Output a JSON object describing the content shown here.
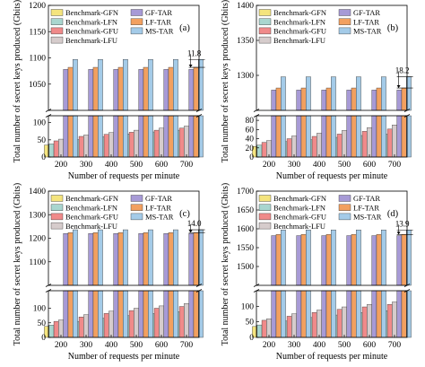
{
  "colors": {
    "Benchmark-GFN": "#f4e47e",
    "Benchmark-LFN": "#a9d6cf",
    "Benchmark-GFU": "#f08a8a",
    "Benchmark-LFU": "#d6cccc",
    "GF-TAR": "#a79ad6",
    "LF-TAR": "#f2a060",
    "MS-TAR": "#a4cbe8"
  },
  "legend_left": [
    "Benchmark-GFN",
    "Benchmark-LFN",
    "Benchmark-GFU",
    "Benchmark-LFU"
  ],
  "legend_right": [
    "GF-TAR",
    "LF-TAR",
    "MS-TAR"
  ],
  "chart_data": [
    {
      "type": "bar",
      "panel": "(a)",
      "xlabel": "Number of requests per minute",
      "ylabel": "Total number of secret keys produced (Gbits)",
      "categories": [
        "200",
        "300",
        "400",
        "500",
        "600",
        "700"
      ],
      "ylim_lower": [
        0,
        120
      ],
      "ylim_upper": [
        1000,
        1200
      ],
      "yticks_lower": [
        0,
        50,
        100
      ],
      "yticks_upper": [
        1050,
        1100,
        1150,
        1200
      ],
      "annotation": "11.8",
      "series": [
        {
          "name": "Benchmark-GFN",
          "values": [
            35,
            47,
            55,
            62,
            68,
            72
          ]
        },
        {
          "name": "Benchmark-LFN",
          "values": [
            38,
            51,
            59,
            67,
            73,
            78
          ]
        },
        {
          "name": "Benchmark-GFU",
          "values": [
            47,
            60,
            66,
            72,
            78,
            84
          ]
        },
        {
          "name": "Benchmark-LFU",
          "values": [
            52,
            64,
            71,
            78,
            84,
            90
          ]
        },
        {
          "name": "GF-TAR",
          "values": [
            1078,
            1078,
            1078,
            1078,
            1078,
            1078
          ]
        },
        {
          "name": "LF-TAR",
          "values": [
            1082,
            1082,
            1082,
            1082,
            1082,
            1082
          ]
        },
        {
          "name": "MS-TAR",
          "values": [
            1097,
            1097,
            1097,
            1097,
            1097,
            1097
          ]
        }
      ]
    },
    {
      "type": "bar",
      "panel": "(b)",
      "xlabel": "Number of requests per minute",
      "ylabel": "Total number of secret keys produced (Gbits)",
      "categories": [
        "200",
        "300",
        "400",
        "500",
        "600",
        "700"
      ],
      "ylim_lower": [
        0,
        90
      ],
      "ylim_upper": [
        1250,
        1400
      ],
      "yticks_lower": [
        0,
        20,
        40,
        60,
        80
      ],
      "yticks_upper": [
        1300,
        1350,
        1400
      ],
      "annotation": "18.2",
      "series": [
        {
          "name": "Benchmark-GFN",
          "values": [
            23,
            30,
            34,
            38,
            42,
            45
          ]
        },
        {
          "name": "Benchmark-LFN",
          "values": [
            26,
            34,
            38,
            43,
            47,
            50
          ]
        },
        {
          "name": "Benchmark-GFU",
          "values": [
            32,
            40,
            45,
            50,
            56,
            61
          ]
        },
        {
          "name": "Benchmark-LFU",
          "values": [
            36,
            46,
            52,
            58,
            64,
            70
          ]
        },
        {
          "name": "GF-TAR",
          "values": [
            1279,
            1279,
            1279,
            1279,
            1279,
            1279
          ]
        },
        {
          "name": "LF-TAR",
          "values": [
            1282,
            1282,
            1282,
            1282,
            1282,
            1282
          ]
        },
        {
          "name": "MS-TAR",
          "values": [
            1298,
            1298,
            1298,
            1298,
            1298,
            1298
          ]
        }
      ]
    },
    {
      "type": "bar",
      "panel": "(c)",
      "xlabel": "Number of requests per minute",
      "ylabel": "Total number of secret keys produced (Gbits)",
      "categories": [
        "200",
        "300",
        "400",
        "500",
        "600",
        "700"
      ],
      "ylim_lower": [
        0,
        160
      ],
      "ylim_upper": [
        1000,
        1400
      ],
      "yticks_lower": [
        0,
        50,
        100
      ],
      "yticks_upper": [
        1100,
        1200,
        1300,
        1400
      ],
      "annotation": "14.0",
      "series": [
        {
          "name": "Benchmark-GFN",
          "values": [
            38,
            50,
            60,
            68,
            75,
            80
          ]
        },
        {
          "name": "Benchmark-LFN",
          "values": [
            42,
            55,
            66,
            75,
            82,
            88
          ]
        },
        {
          "name": "Benchmark-GFU",
          "values": [
            55,
            70,
            82,
            92,
            100,
            106
          ]
        },
        {
          "name": "Benchmark-LFU",
          "values": [
            60,
            78,
            90,
            100,
            108,
            116
          ]
        },
        {
          "name": "GF-TAR",
          "values": [
            1220,
            1220,
            1220,
            1220,
            1220,
            1220
          ]
        },
        {
          "name": "LF-TAR",
          "values": [
            1224,
            1224,
            1224,
            1224,
            1224,
            1224
          ]
        },
        {
          "name": "MS-TAR",
          "values": [
            1236,
            1236,
            1236,
            1236,
            1236,
            1236
          ]
        }
      ]
    },
    {
      "type": "bar",
      "panel": "(d)",
      "xlabel": "Number of requests per minute",
      "ylabel": "Total number of secret keys produced (Gbits)",
      "categories": [
        "200",
        "300",
        "400",
        "500",
        "600",
        "700"
      ],
      "ylim_lower": [
        0,
        150
      ],
      "ylim_upper": [
        1450,
        1700
      ],
      "yticks_lower": [
        0,
        50,
        100
      ],
      "yticks_upper": [
        1500,
        1550,
        1600,
        1650,
        1700
      ],
      "annotation": "13.9",
      "series": [
        {
          "name": "Benchmark-GFN",
          "values": [
            35,
            48,
            58,
            65,
            72,
            78
          ]
        },
        {
          "name": "Benchmark-LFN",
          "values": [
            40,
            53,
            64,
            72,
            80,
            86
          ]
        },
        {
          "name": "Benchmark-GFU",
          "values": [
            55,
            68,
            80,
            90,
            98,
            106
          ]
        },
        {
          "name": "Benchmark-LFU",
          "values": [
            60,
            76,
            88,
            98,
            106,
            114
          ]
        },
        {
          "name": "GF-TAR",
          "values": [
            1582,
            1582,
            1582,
            1582,
            1582,
            1582
          ]
        },
        {
          "name": "LF-TAR",
          "values": [
            1585,
            1585,
            1585,
            1585,
            1585,
            1585
          ]
        },
        {
          "name": "MS-TAR",
          "values": [
            1597,
            1597,
            1597,
            1597,
            1597,
            1597
          ]
        }
      ]
    }
  ]
}
